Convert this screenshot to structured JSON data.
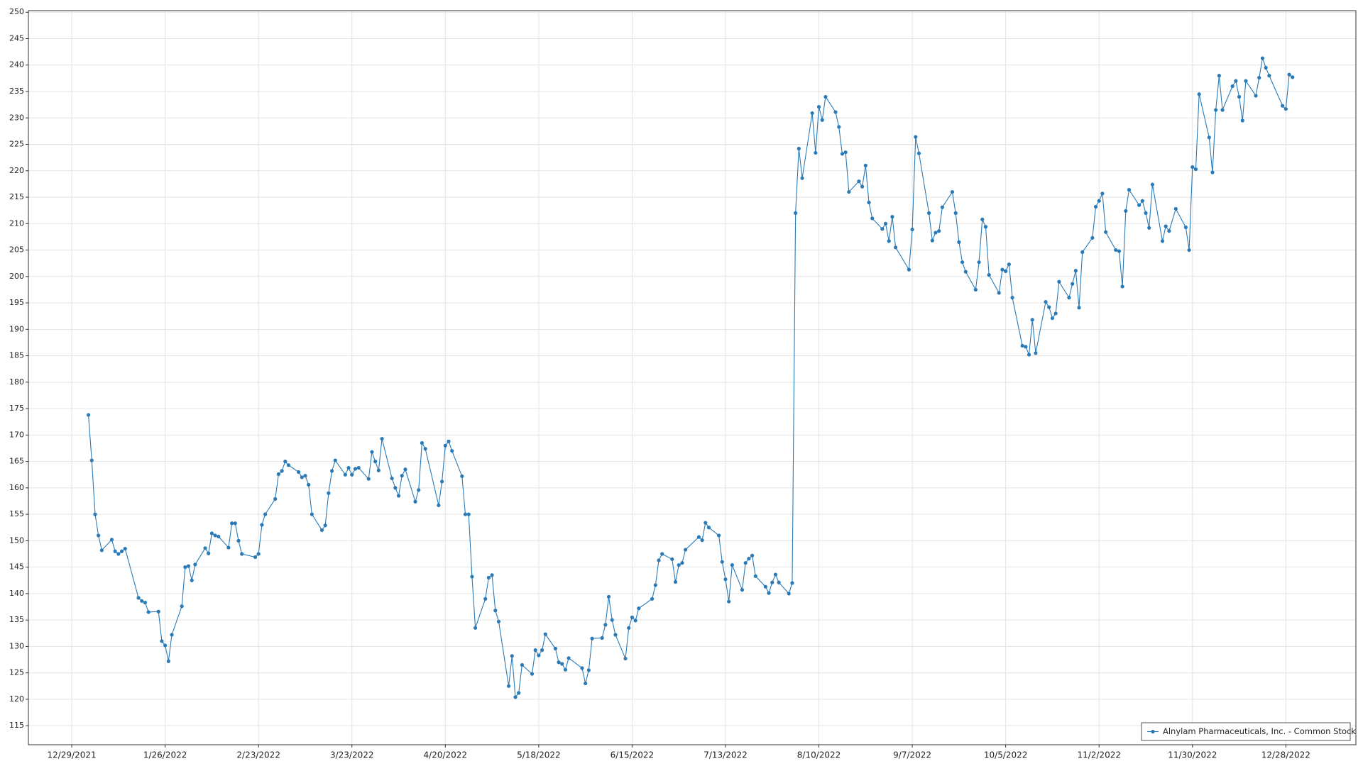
{
  "chart_data": {
    "type": "line",
    "grid": true,
    "legend": "bottom-right",
    "xlim": [
      "12/16/2021",
      "1/18/2023"
    ],
    "ylim": [
      111.4,
      250.3
    ],
    "xticks": [
      "12/29/2021",
      "1/26/2022",
      "2/23/2022",
      "3/23/2022",
      "4/20/2022",
      "5/18/2022",
      "6/15/2022",
      "7/13/2022",
      "8/10/2022",
      "9/7/2022",
      "10/5/2022",
      "11/2/2022",
      "11/30/2022",
      "12/28/2022"
    ],
    "yticks": [
      115,
      120,
      125,
      130,
      135,
      140,
      145,
      150,
      155,
      160,
      165,
      170,
      175,
      180,
      185,
      190,
      195,
      200,
      205,
      210,
      215,
      220,
      225,
      230,
      235,
      240,
      245,
      250
    ],
    "x": [
      "1/3/2022",
      "1/4/2022",
      "1/5/2022",
      "1/6/2022",
      "1/7/2022",
      "1/10/2022",
      "1/11/2022",
      "1/12/2022",
      "1/13/2022",
      "1/14/2022",
      "1/18/2022",
      "1/19/2022",
      "1/20/2022",
      "1/21/2022",
      "1/24/2022",
      "1/25/2022",
      "1/26/2022",
      "1/27/2022",
      "1/28/2022",
      "1/31/2022",
      "2/1/2022",
      "2/2/2022",
      "2/3/2022",
      "2/4/2022",
      "2/7/2022",
      "2/8/2022",
      "2/9/2022",
      "2/10/2022",
      "2/11/2022",
      "2/14/2022",
      "2/15/2022",
      "2/16/2022",
      "2/17/2022",
      "2/18/2022",
      "2/22/2022",
      "2/23/2022",
      "2/24/2022",
      "2/25/2022",
      "2/28/2022",
      "3/1/2022",
      "3/2/2022",
      "3/3/2022",
      "3/4/2022",
      "3/7/2022",
      "3/8/2022",
      "3/9/2022",
      "3/10/2022",
      "3/11/2022",
      "3/14/2022",
      "3/15/2022",
      "3/16/2022",
      "3/17/2022",
      "3/18/2022",
      "3/21/2022",
      "3/22/2022",
      "3/23/2022",
      "3/24/2022",
      "3/25/2022",
      "3/28/2022",
      "3/29/2022",
      "3/30/2022",
      "3/31/2022",
      "4/1/2022",
      "4/4/2022",
      "4/5/2022",
      "4/6/2022",
      "4/7/2022",
      "4/8/2022",
      "4/11/2022",
      "4/12/2022",
      "4/13/2022",
      "4/14/2022",
      "4/18/2022",
      "4/19/2022",
      "4/20/2022",
      "4/21/2022",
      "4/22/2022",
      "4/25/2022",
      "4/26/2022",
      "4/27/2022",
      "4/28/2022",
      "4/29/2022",
      "5/2/2022",
      "5/3/2022",
      "5/4/2022",
      "5/5/2022",
      "5/6/2022",
      "5/9/2022",
      "5/10/2022",
      "5/11/2022",
      "5/12/2022",
      "5/13/2022",
      "5/16/2022",
      "5/17/2022",
      "5/18/2022",
      "5/19/2022",
      "5/20/2022",
      "5/23/2022",
      "5/24/2022",
      "5/25/2022",
      "5/26/2022",
      "5/27/2022",
      "5/31/2022",
      "6/1/2022",
      "6/2/2022",
      "6/3/2022",
      "6/6/2022",
      "6/7/2022",
      "6/8/2022",
      "6/9/2022",
      "6/10/2022",
      "6/13/2022",
      "6/14/2022",
      "6/15/2022",
      "6/16/2022",
      "6/17/2022",
      "6/21/2022",
      "6/22/2022",
      "6/23/2022",
      "6/24/2022",
      "6/27/2022",
      "6/28/2022",
      "6/29/2022",
      "6/30/2022",
      "7/1/2022",
      "7/5/2022",
      "7/6/2022",
      "7/7/2022",
      "7/8/2022",
      "7/11/2022",
      "7/12/2022",
      "7/13/2022",
      "7/14/2022",
      "7/15/2022",
      "7/18/2022",
      "7/19/2022",
      "7/20/2022",
      "7/21/2022",
      "7/22/2022",
      "7/25/2022",
      "7/26/2022",
      "7/27/2022",
      "7/28/2022",
      "7/29/2022",
      "8/1/2022",
      "8/2/2022",
      "8/3/2022",
      "8/4/2022",
      "8/5/2022",
      "8/8/2022",
      "8/9/2022",
      "8/10/2022",
      "8/11/2022",
      "8/12/2022",
      "8/15/2022",
      "8/16/2022",
      "8/17/2022",
      "8/18/2022",
      "8/19/2022",
      "8/22/2022",
      "8/23/2022",
      "8/24/2022",
      "8/25/2022",
      "8/26/2022",
      "8/29/2022",
      "8/30/2022",
      "8/31/2022",
      "9/1/2022",
      "9/2/2022",
      "9/6/2022",
      "9/7/2022",
      "9/8/2022",
      "9/9/2022",
      "9/12/2022",
      "9/13/2022",
      "9/14/2022",
      "9/15/2022",
      "9/16/2022",
      "9/19/2022",
      "9/20/2022",
      "9/21/2022",
      "9/22/2022",
      "9/23/2022",
      "9/26/2022",
      "9/27/2022",
      "9/28/2022",
      "9/29/2022",
      "9/30/2022",
      "10/3/2022",
      "10/4/2022",
      "10/5/2022",
      "10/6/2022",
      "10/7/2022",
      "10/10/2022",
      "10/11/2022",
      "10/12/2022",
      "10/13/2022",
      "10/14/2022",
      "10/17/2022",
      "10/18/2022",
      "10/19/2022",
      "10/20/2022",
      "10/21/2022",
      "10/24/2022",
      "10/25/2022",
      "10/26/2022",
      "10/27/2022",
      "10/28/2022",
      "10/31/2022",
      "11/1/2022",
      "11/2/2022",
      "11/3/2022",
      "11/4/2022",
      "11/7/2022",
      "11/8/2022",
      "11/9/2022",
      "11/10/2022",
      "11/11/2022",
      "11/14/2022",
      "11/15/2022",
      "11/16/2022",
      "11/17/2022",
      "11/18/2022",
      "11/21/2022",
      "11/22/2022",
      "11/23/2022",
      "11/25/2022",
      "11/28/2022",
      "11/29/2022",
      "11/30/2022",
      "12/1/2022",
      "12/2/2022",
      "12/5/2022",
      "12/6/2022",
      "12/7/2022",
      "12/8/2022",
      "12/9/2022",
      "12/12/2022",
      "12/13/2022",
      "12/14/2022",
      "12/15/2022",
      "12/16/2022",
      "12/19/2022",
      "12/20/2022",
      "12/21/2022",
      "12/22/2022",
      "12/23/2022",
      "12/27/2022",
      "12/28/2022",
      "12/29/2022",
      "12/30/2022"
    ],
    "series": [
      {
        "name": "Alnylam Pharmaceuticals, Inc. - Common Stock",
        "color": "#2a7ab7",
        "values": [
          173.8,
          165.2,
          155,
          151,
          148.2,
          150.2,
          148,
          147.5,
          148,
          148.5,
          139.2,
          138.6,
          138.3,
          136.5,
          136.6,
          131,
          130.2,
          127.2,
          132.2,
          137.6,
          145,
          145.2,
          142.5,
          145.5,
          148.6,
          147.6,
          151.4,
          151,
          150.8,
          148.7,
          153.3,
          153.3,
          150,
          147.5,
          146.9,
          147.5,
          153,
          155,
          157.9,
          162.6,
          163.2,
          165,
          164.3,
          163,
          162,
          162.3,
          160.6,
          155,
          152,
          152.9,
          159,
          163.2,
          165.2,
          162.5,
          163.8,
          162.5,
          163.6,
          163.8,
          161.7,
          166.8,
          165,
          163.3,
          169.3,
          161.8,
          160,
          158.5,
          162.3,
          163.5,
          157.4,
          159.6,
          168.5,
          167.4,
          156.7,
          161.2,
          168,
          168.8,
          167,
          162.2,
          155,
          155,
          143.2,
          133.5,
          139,
          143,
          143.5,
          136.8,
          134.7,
          122.5,
          128.2,
          120.4,
          121.2,
          126.5,
          124.8,
          129.3,
          128.3,
          129.3,
          132.3,
          129.6,
          127,
          126.7,
          125.6,
          127.8,
          125.9,
          123,
          125.5,
          131.5,
          131.6,
          134.1,
          139.4,
          135,
          132.2,
          127.7,
          133.5,
          135.5,
          134.9,
          137.2,
          139,
          141.6,
          146.3,
          147.5,
          146.5,
          142.2,
          145.4,
          145.8,
          148.3,
          150.7,
          150.1,
          153.4,
          152.5,
          151,
          146,
          142.7,
          138.5,
          145.4,
          140.7,
          145.8,
          146.6,
          147.2,
          143.3,
          141.3,
          140.1,
          142.1,
          143.6,
          142.1,
          140,
          142,
          212,
          224.2,
          218.6,
          230.9,
          223.4,
          232.1,
          229.6,
          234,
          231.1,
          228.3,
          223.2,
          223.5,
          216,
          218,
          217,
          221,
          214,
          211,
          209,
          210,
          206.7,
          211.3,
          205.5,
          201.3,
          208.9,
          226.4,
          223.3,
          212,
          206.8,
          208.3,
          208.6,
          213.1,
          216,
          212,
          206.5,
          202.7,
          200.9,
          197.5,
          202.7,
          210.8,
          209.4,
          200.3,
          196.9,
          201.3,
          201,
          202.3,
          196,
          186.9,
          186.7,
          185.2,
          191.8,
          185.5,
          195.2,
          194.2,
          192.1,
          193,
          199,
          196,
          198.6,
          201.1,
          194.1,
          204.6,
          207.3,
          213.2,
          214.3,
          215.7,
          208.4,
          205,
          204.8,
          198.1,
          212.4,
          216.4,
          213.5,
          214.3,
          212,
          209.2,
          217.4,
          206.7,
          209.5,
          208.6,
          212.8,
          209.3,
          205,
          220.7,
          220.3,
          234.5,
          226.3,
          219.7,
          231.5,
          238,
          231.5,
          236,
          237,
          234,
          229.5,
          237,
          234.2,
          237.6,
          241.3,
          239.5,
          238,
          232.3,
          231.7,
          238.2,
          237.7
        ]
      }
    ]
  }
}
